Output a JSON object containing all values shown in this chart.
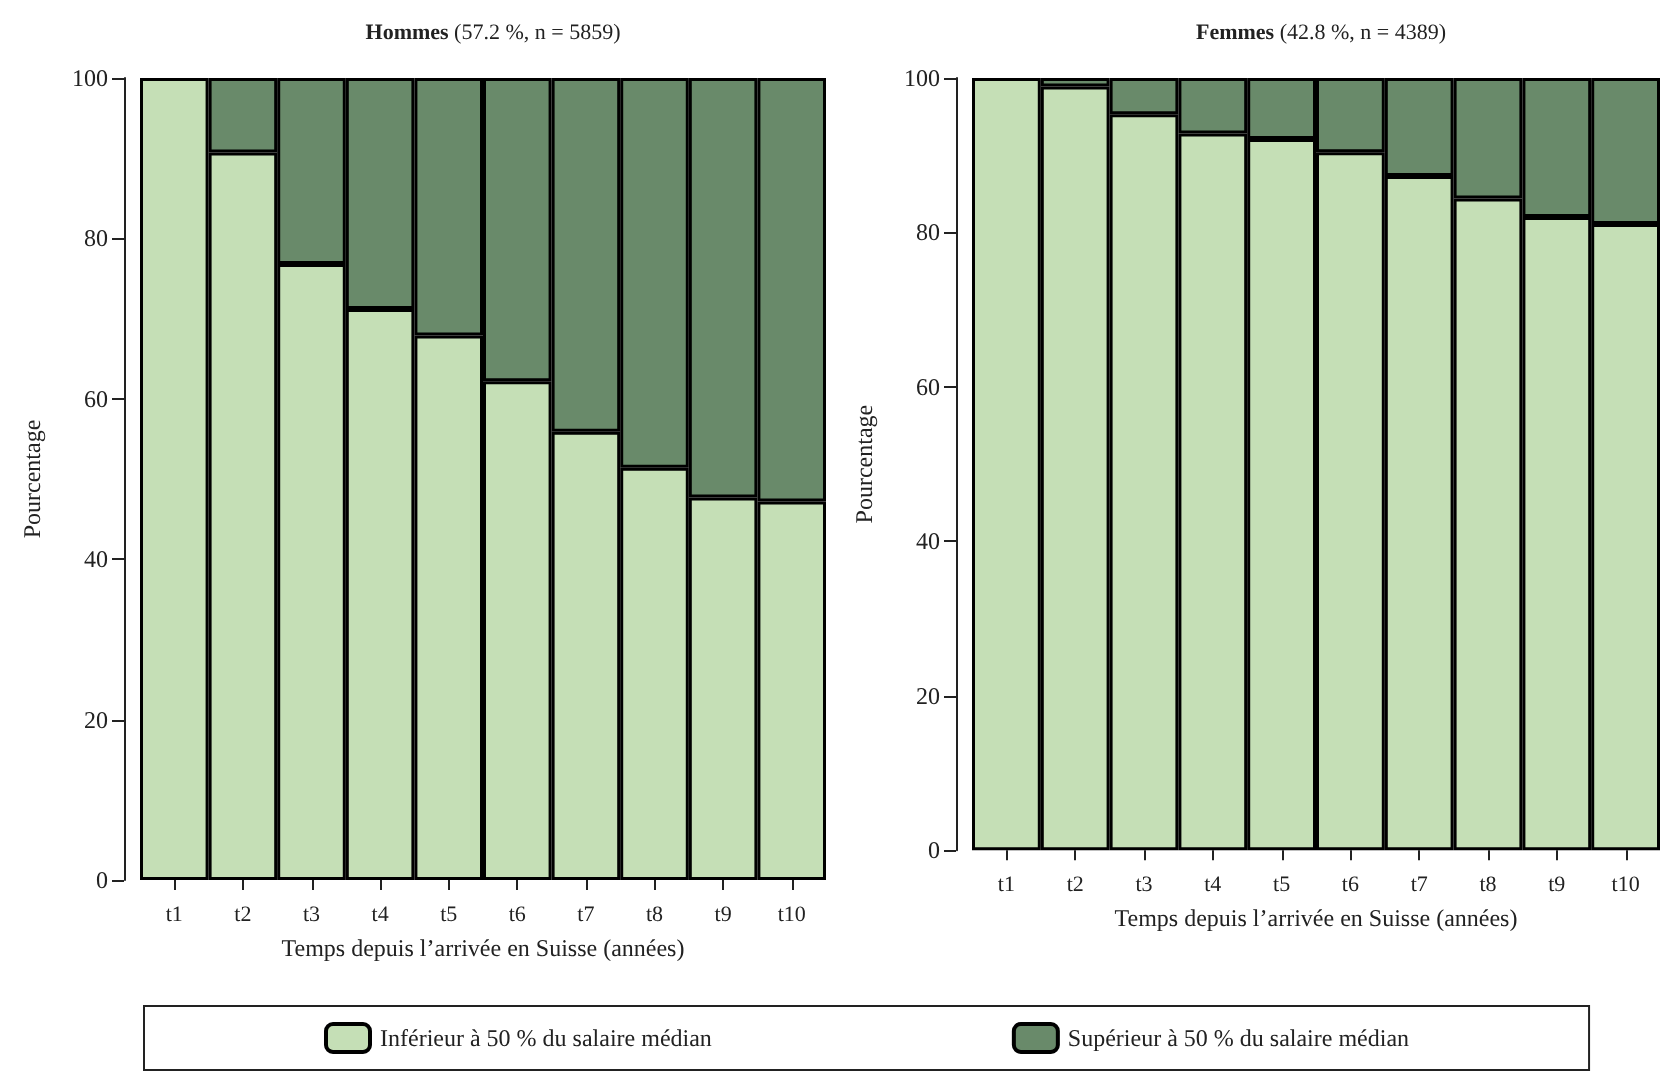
{
  "chart_data": [
    {
      "type": "bar",
      "title": "Hommes (57.2 %, n = 5859)",
      "xlabel": "Temps depuis l’arrivée en Suisse (années)",
      "ylabel": "Pourcentage",
      "categories": [
        "t1",
        "t2",
        "t3",
        "t4",
        "t5",
        "t6",
        "t7",
        "t8",
        "t9",
        "t10"
      ],
      "stacked": true,
      "ylim": [
        0,
        100
      ],
      "yticks": [
        0,
        20,
        40,
        60,
        80,
        100
      ],
      "grid": false,
      "legend": "bottom",
      "series": [
        {
          "name": "Inférieur à 50 % du salaire médian",
          "color": "#c5dfb6",
          "values": [
            100,
            90.7,
            76.8,
            71.2,
            67.9,
            62.2,
            55.9,
            51.4,
            47.7,
            47.2
          ]
        },
        {
          "name": "Supérieur à 50 % du salaire médian",
          "color": "#698a6a",
          "values": [
            0,
            9.3,
            23.2,
            28.8,
            32.1,
            37.8,
            44.1,
            48.6,
            52.3,
            52.8
          ]
        }
      ]
    },
    {
      "type": "bar",
      "title": "Femmes (42.8 %, n = 4389)",
      "xlabel": "Temps depuis l’arrivée en Suisse (années)",
      "ylabel": "Pourcentage",
      "categories": [
        "t1",
        "t2",
        "t3",
        "t4",
        "t5",
        "t6",
        "t7",
        "t8",
        "t9",
        "t10"
      ],
      "stacked": true,
      "ylim": [
        0,
        100
      ],
      "yticks": [
        0,
        20,
        40,
        60,
        80,
        100
      ],
      "grid": false,
      "series": [
        {
          "color": "#c5dfb6",
          "values": [
            100,
            98.9,
            95.3,
            92.8,
            92.1,
            90.4,
            87.3,
            84.4,
            82.0,
            81.1
          ]
        },
        {
          "color": "#698a6a",
          "values": [
            0,
            1.1,
            4.7,
            7.2,
            7.9,
            9.6,
            12.7,
            15.6,
            18.0,
            18.9
          ]
        }
      ]
    }
  ]
}
